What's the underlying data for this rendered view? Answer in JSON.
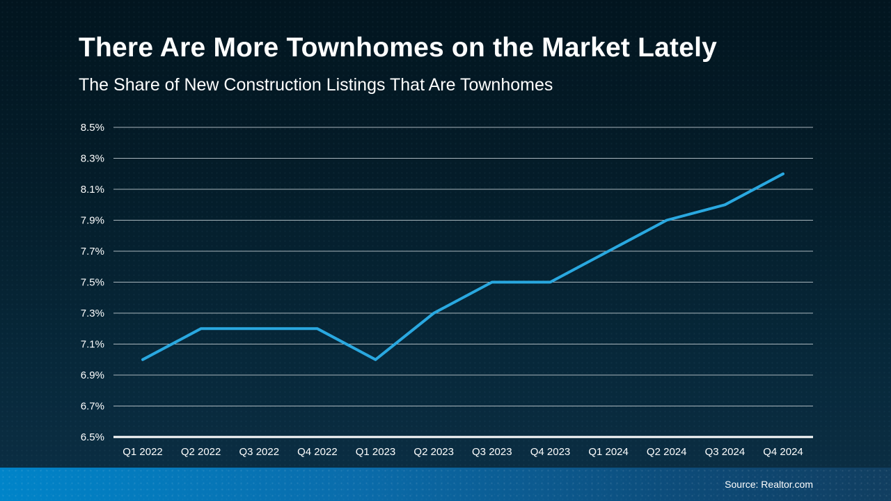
{
  "chart_data": {
    "type": "line",
    "title": "There Are More Townhomes on the Market Lately",
    "subtitle": "The Share of New Construction Listings That Are Townhomes",
    "source": "Source: Realtor.com",
    "categories": [
      "Q1 2022",
      "Q2 2022",
      "Q3 2022",
      "Q4 2022",
      "Q1 2023",
      "Q2 2023",
      "Q3 2023",
      "Q4 2023",
      "Q1 2024",
      "Q2 2024",
      "Q3 2024",
      "Q4 2024"
    ],
    "values": [
      7.0,
      7.2,
      7.2,
      7.2,
      7.0,
      7.3,
      7.5,
      7.5,
      7.7,
      7.9,
      8.0,
      8.2
    ],
    "yticks": [
      "8.5%",
      "8.3%",
      "8.1%",
      "7.9%",
      "7.7%",
      "7.5%",
      "7.3%",
      "7.1%",
      "6.9%",
      "6.7%",
      "6.5%"
    ],
    "ylim": [
      6.5,
      8.5
    ],
    "xlabel": "",
    "ylabel": "",
    "grid": true,
    "legend_position": "none",
    "line_color": "#29a8e0",
    "grid_color": "#aab6bd",
    "axis_color": "#ffffff",
    "text_color": "#ffffff"
  }
}
